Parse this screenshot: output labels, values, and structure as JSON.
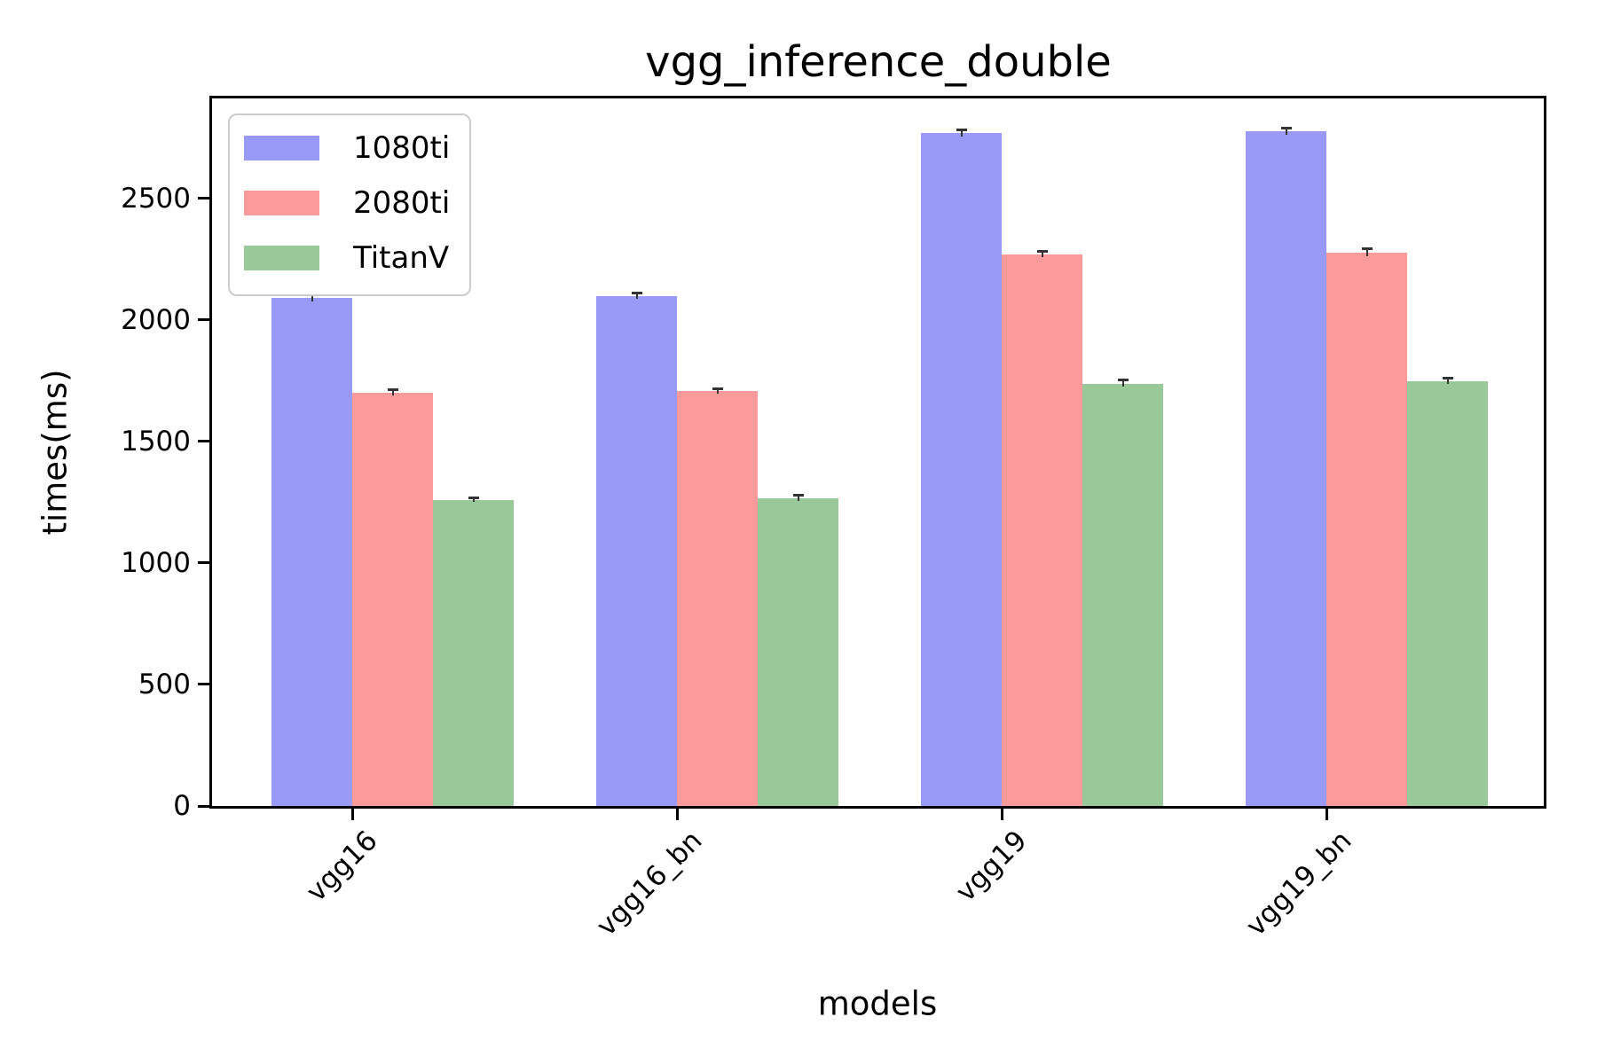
{
  "title": "vgg_inference_double",
  "axes": {
    "xlabel": "models",
    "ylabel": "times(ms)"
  },
  "chart_data": {
    "type": "bar",
    "title": "vgg_inference_double",
    "xlabel": "models",
    "ylabel": "times(ms)",
    "categories": [
      "vgg16",
      "vgg16_bn",
      "vgg19",
      "vgg19_bn"
    ],
    "series": [
      {
        "name": "1080ti",
        "color": "#9999f8",
        "values": [
          2090,
          2098,
          2768,
          2776
        ],
        "errors": [
          15,
          12,
          14,
          13
        ]
      },
      {
        "name": "2080ti",
        "color": "#fb9a9a",
        "values": [
          1700,
          1706,
          2270,
          2276
        ],
        "errors": [
          12,
          10,
          12,
          14
        ]
      },
      {
        "name": "TitanV",
        "color": "#99c999",
        "values": [
          1258,
          1266,
          1738,
          1748
        ],
        "errors": [
          8,
          10,
          12,
          10
        ]
      }
    ],
    "yticks": [
      0,
      500,
      1000,
      1500,
      2000,
      2500
    ],
    "ylim": [
      0,
      2912
    ],
    "grid": false,
    "legend_position": "upper left",
    "error_bars": true
  }
}
